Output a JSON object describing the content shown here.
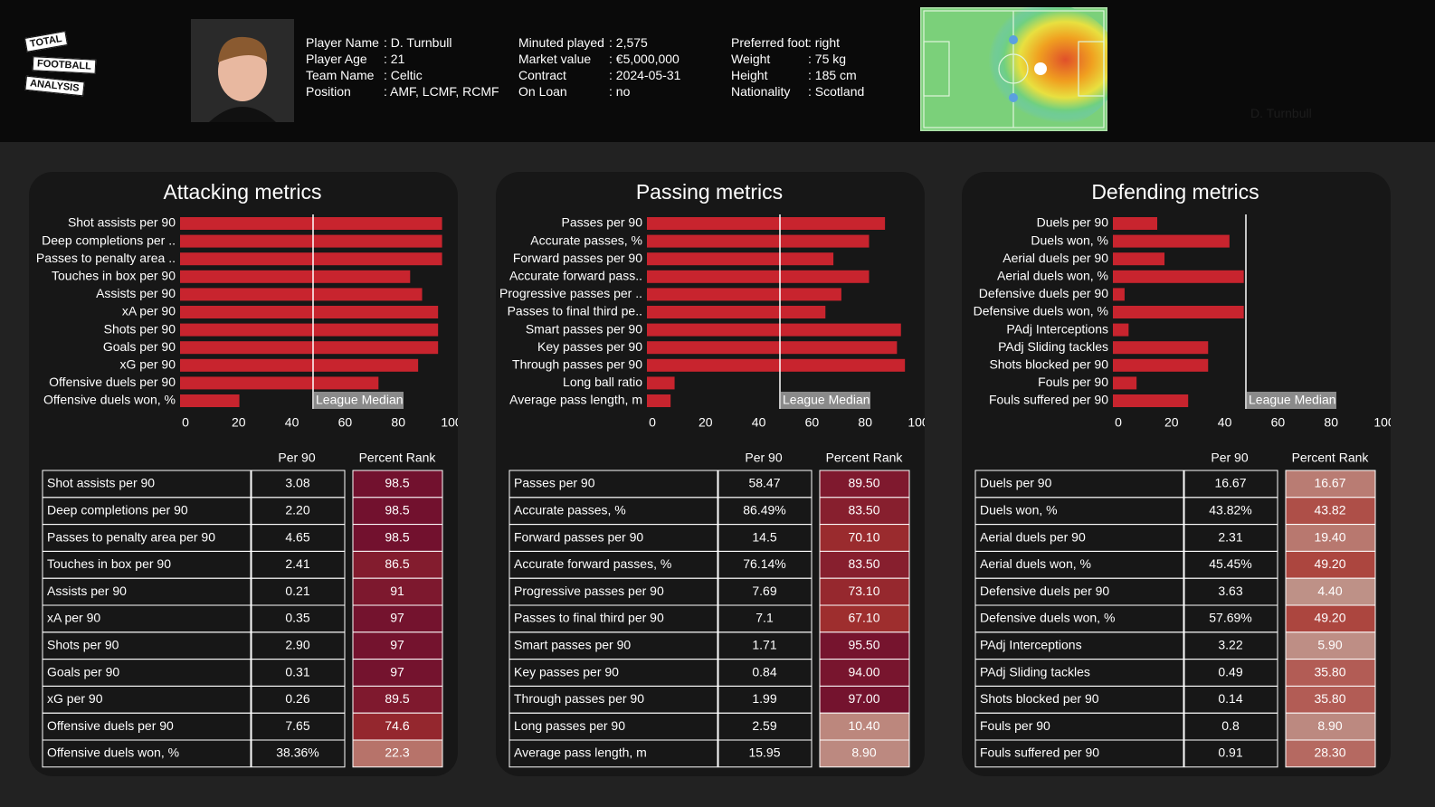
{
  "header": {
    "logo": [
      "TOTAL",
      "FOOTBALL",
      "ANALYSIS"
    ],
    "watermark": "D. Turnbull",
    "info": [
      [
        {
          "label": "Player Name",
          "value": ": D. Turnbull"
        },
        {
          "label": "Player Age",
          "value": ": 21"
        },
        {
          "label": "Team Name",
          "value": ": Celtic"
        },
        {
          "label": "Position",
          "value": ": AMF, LCMF, RCMF"
        }
      ],
      [
        {
          "label": "Minuted played",
          "value": ": 2,575"
        },
        {
          "label": "Market value",
          "value": ": €5,000,000"
        },
        {
          "label": "Contract",
          "value": ": 2024-05-31"
        },
        {
          "label": "On Loan",
          "value": ": no"
        }
      ],
      [
        {
          "label": "Preferred foot",
          "value": ": right"
        },
        {
          "label": "Weight",
          "value": ": 75 kg"
        },
        {
          "label": "Height",
          "value": ": 185 cm"
        },
        {
          "label": "Nationality",
          "value": ": Scotland"
        }
      ]
    ]
  },
  "chart_data": [
    {
      "type": "bar",
      "orientation": "horizontal",
      "title": "Attacking metrics",
      "color": "#c8242e",
      "categories": [
        "Shot assists per 90",
        "Deep completions per ..",
        "Passes to penalty area ..",
        "Touches in box per 90",
        "Assists per 90",
        "xA per 90",
        "Shots per 90",
        "Goals per 90",
        "xG per 90",
        "Offensive duels per 90",
        "Offensive duels won, %"
      ],
      "values": [
        98.5,
        98.5,
        98.5,
        86.5,
        91,
        97,
        97,
        97,
        89.5,
        74.6,
        22.3
      ],
      "xlim": [
        0,
        100
      ],
      "xticks": [
        0,
        20,
        40,
        60,
        80,
        100
      ],
      "reference_line": {
        "value": 50,
        "label": "League Median"
      }
    },
    {
      "type": "bar",
      "orientation": "horizontal",
      "title": "Passing metrics",
      "color": "#c8242e",
      "categories": [
        "Passes per 90",
        "Accurate passes, %",
        "Forward passes per 90",
        "Accurate forward pass..",
        "Progressive passes per ..",
        "Passes to final third pe..",
        "Smart passes per 90",
        "Key passes per 90",
        "Through passes per 90",
        "Long ball ratio",
        "Average pass length, m"
      ],
      "values": [
        89.5,
        83.5,
        70.1,
        83.5,
        73.1,
        67.1,
        95.5,
        94,
        97,
        10.4,
        8.9
      ],
      "xlim": [
        0,
        100
      ],
      "xticks": [
        0,
        20,
        40,
        60,
        80,
        100
      ],
      "reference_line": {
        "value": 50,
        "label": "League Median"
      }
    },
    {
      "type": "bar",
      "orientation": "horizontal",
      "title": "Defending metrics",
      "color": "#c8242e",
      "categories": [
        "Duels per 90",
        "Duels won, %",
        "Aerial duels per 90",
        "Aerial duels won, %",
        "Defensive duels per 90",
        "Defensive duels won, %",
        "PAdj Interceptions",
        "PAdj Sliding tackles",
        "Shots blocked per 90",
        "Fouls per 90",
        "Fouls suffered per 90"
      ],
      "values": [
        16.67,
        43.82,
        19.4,
        49.2,
        4.4,
        49.2,
        5.9,
        35.8,
        35.8,
        8.9,
        28.3
      ],
      "xlim": [
        0,
        100
      ],
      "xticks": [
        0,
        20,
        40,
        60,
        80,
        100
      ],
      "reference_line": {
        "value": 50,
        "label": "League Median"
      }
    }
  ],
  "tables": [
    {
      "columns": [
        "Per 90",
        "Percent Rank"
      ],
      "rows": [
        [
          "Shot assists per 90",
          "3.08",
          "98.5"
        ],
        [
          "Deep completions per 90",
          "2.20",
          "98.5"
        ],
        [
          "Passes to penalty area per 90",
          "4.65",
          "98.5"
        ],
        [
          "Touches in box per 90",
          "2.41",
          "86.5"
        ],
        [
          "Assists per 90",
          "0.21",
          "91"
        ],
        [
          "xA per 90",
          "0.35",
          "97"
        ],
        [
          "Shots per 90",
          "2.90",
          "97"
        ],
        [
          "Goals per 90",
          "0.31",
          "97"
        ],
        [
          "xG per 90",
          "0.26",
          "89.5"
        ],
        [
          "Offensive duels per 90",
          "7.65",
          "74.6"
        ],
        [
          "Offensive duels won, %",
          "38.36%",
          "22.3"
        ]
      ]
    },
    {
      "columns": [
        "Per 90",
        "Percent Rank"
      ],
      "rows": [
        [
          "Passes per 90",
          "58.47",
          "89.50"
        ],
        [
          "Accurate passes, %",
          "86.49%",
          "83.50"
        ],
        [
          "Forward passes per 90",
          "14.5",
          "70.10"
        ],
        [
          "Accurate forward passes, %",
          "76.14%",
          "83.50"
        ],
        [
          "Progressive passes per 90",
          "7.69",
          "73.10"
        ],
        [
          "Passes to final third per 90",
          "7.1",
          "67.10"
        ],
        [
          "Smart passes per 90",
          "1.71",
          "95.50"
        ],
        [
          "Key passes per 90",
          "0.84",
          "94.00"
        ],
        [
          "Through passes per 90",
          "1.99",
          "97.00"
        ],
        [
          "Long passes per 90",
          "2.59",
          "10.40"
        ],
        [
          "Average pass length, m",
          "15.95",
          "8.90"
        ]
      ]
    },
    {
      "columns": [
        "Per 90",
        "Percent Rank"
      ],
      "rows": [
        [
          "Duels per 90",
          "16.67",
          "16.67"
        ],
        [
          "Duels won, %",
          "43.82%",
          "43.82"
        ],
        [
          "Aerial duels per 90",
          "2.31",
          "19.40"
        ],
        [
          "Aerial duels won, %",
          "45.45%",
          "49.20"
        ],
        [
          "Defensive duels per 90",
          "3.63",
          "4.40"
        ],
        [
          "Defensive duels won, %",
          "57.69%",
          "49.20"
        ],
        [
          "PAdj Interceptions",
          "3.22",
          "5.90"
        ],
        [
          "PAdj Sliding tackles",
          "0.49",
          "35.80"
        ],
        [
          "Shots blocked per 90",
          "0.14",
          "35.80"
        ],
        [
          "Fouls per 90",
          "0.8",
          "8.90"
        ],
        [
          "Fouls suffered per 90",
          "0.91",
          "28.30"
        ]
      ]
    }
  ]
}
